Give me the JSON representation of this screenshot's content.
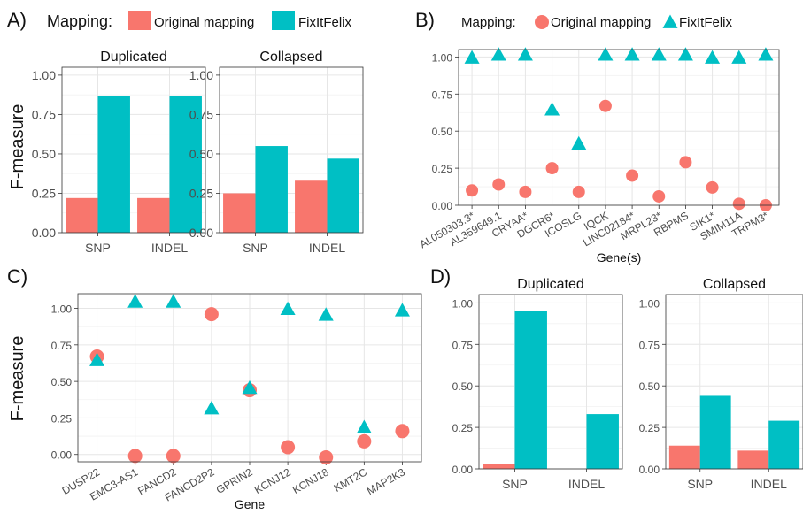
{
  "colors": {
    "original": "#F8766D",
    "fixitfelix": "#00BFC4"
  },
  "legend": {
    "title": "Mapping:",
    "items": [
      "Original mapping",
      "FixItFelix"
    ]
  },
  "chart_data": [
    {
      "panel_label": "A)",
      "type": "bar",
      "ylabel": "F-measure",
      "ylim": [
        0,
        1.05
      ],
      "yticks": [
        "0.00",
        "0.25",
        "0.50",
        "0.75",
        "1.00"
      ],
      "subplots": [
        {
          "title": "Duplicated",
          "categories": [
            "SNP",
            "INDEL"
          ],
          "series": [
            {
              "name": "Original mapping",
              "values": [
                0.22,
                0.22
              ]
            },
            {
              "name": "FixItFelix",
              "values": [
                0.87,
                0.87
              ]
            }
          ]
        },
        {
          "title": "Collapsed",
          "categories": [
            "SNP",
            "INDEL"
          ],
          "series": [
            {
              "name": "Original mapping",
              "values": [
                0.25,
                0.33
              ]
            },
            {
              "name": "FixItFelix",
              "values": [
                0.55,
                0.47
              ]
            }
          ]
        }
      ]
    },
    {
      "panel_label": "B)",
      "type": "scatter",
      "xlabel": "Gene(s)",
      "ylim": [
        0,
        1.05
      ],
      "yticks": [
        "0.00",
        "0.25",
        "0.50",
        "0.75",
        "1.00"
      ],
      "categories": [
        "AL050303.3*",
        "AL359649.1",
        "CRYAA*",
        "DGCR6*",
        "ICOSLG",
        "IQCK",
        "LINC02184*",
        "MRPL23*",
        "RBPMS",
        "SIK1*",
        "SMIM11A",
        "TRPM3*"
      ],
      "series": [
        {
          "name": "Original mapping",
          "values": [
            0.1,
            0.14,
            0.09,
            0.25,
            0.09,
            0.67,
            0.2,
            0.06,
            0.29,
            0.12,
            0.01,
            0.0
          ]
        },
        {
          "name": "FixItFelix",
          "values": [
            0.99,
            1.01,
            1.01,
            0.64,
            0.41,
            1.01,
            1.01,
            1.01,
            1.01,
            0.99,
            0.99,
            1.01
          ]
        }
      ]
    },
    {
      "panel_label": "C)",
      "type": "scatter",
      "xlabel": "Gene",
      "ylabel": "F-measure",
      "ylim": [
        -0.05,
        1.1
      ],
      "yticks": [
        "0.00",
        "0.25",
        "0.50",
        "0.75",
        "1.00"
      ],
      "categories": [
        "DUSP22",
        "EMC3-AS1",
        "FANCD2",
        "FANCD2P2",
        "GPRIN2",
        "KCNJ12",
        "KCNJ18",
        "KMT2C",
        "MAP2K3"
      ],
      "series": [
        {
          "name": "Original mapping",
          "values": [
            0.67,
            -0.01,
            -0.01,
            0.96,
            0.44,
            0.05,
            -0.02,
            0.09,
            0.16
          ]
        },
        {
          "name": "FixItFelix",
          "values": [
            0.64,
            1.04,
            1.04,
            0.31,
            0.45,
            0.99,
            0.95,
            0.18,
            0.98
          ]
        }
      ]
    },
    {
      "panel_label": "D)",
      "type": "bar",
      "ylim": [
        0,
        1.05
      ],
      "yticks": [
        "0.00",
        "0.25",
        "0.50",
        "0.75",
        "1.00"
      ],
      "subplots": [
        {
          "title": "Duplicated",
          "categories": [
            "SNP",
            "INDEL"
          ],
          "series": [
            {
              "name": "Original mapping",
              "values": [
                0.03,
                0
              ]
            },
            {
              "name": "FixItFelix",
              "values": [
                0.95,
                0.33
              ]
            }
          ]
        },
        {
          "title": "Collapsed",
          "categories": [
            "SNP",
            "INDEL"
          ],
          "series": [
            {
              "name": "Original mapping",
              "values": [
                0.14,
                0.11
              ]
            },
            {
              "name": "FixItFelix",
              "values": [
                0.44,
                0.29
              ]
            }
          ]
        }
      ]
    }
  ]
}
